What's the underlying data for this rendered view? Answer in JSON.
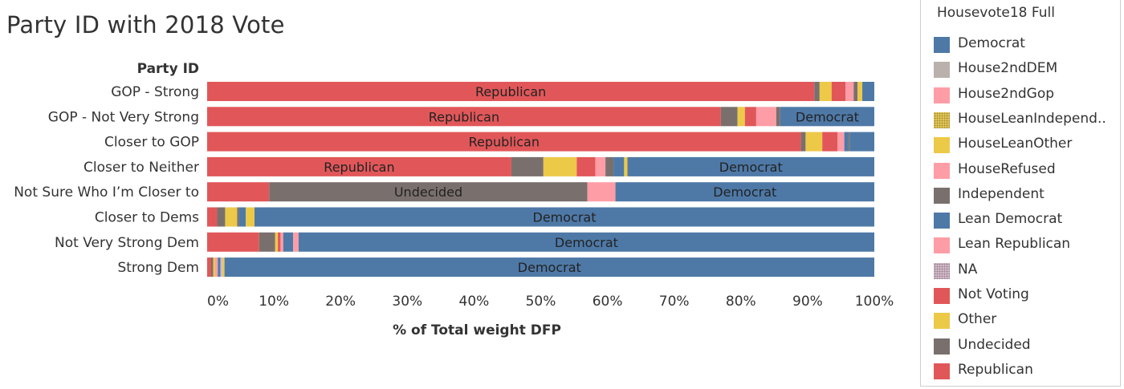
{
  "title": "Party ID with 2018 Vote",
  "chart_data": {
    "type": "bar",
    "orientation": "horizontal",
    "stacked": "percent",
    "row_header": "Party ID",
    "xlabel": "% of Total weight DFP",
    "xlim": [
      0,
      100
    ],
    "x_ticks": [
      "0%",
      "10%",
      "20%",
      "30%",
      "40%",
      "50%",
      "60%",
      "70%",
      "80%",
      "90%",
      "100%"
    ],
    "categories": [
      "GOP - Strong",
      "GOP - Not Very Strong",
      "Closer to GOP",
      "Closer to Neither",
      "Not Sure Who I’m Closer to",
      "Closer to Dems",
      "Not Very Strong Dem",
      "Strong Dem"
    ],
    "bars": [
      [
        {
          "series": "Republican",
          "value": 91,
          "label": "Republican"
        },
        {
          "series": "Undecided",
          "value": 0.8
        },
        {
          "series": "Other",
          "value": 1.8
        },
        {
          "series": "Not Voting",
          "value": 2.1
        },
        {
          "series": "HouseRefused",
          "value": 1.2
        },
        {
          "series": "Undecided",
          "value": 0.6
        },
        {
          "series": "Other",
          "value": 0.7
        },
        {
          "series": "Democrat",
          "value": 1.8
        }
      ],
      [
        {
          "series": "Republican",
          "value": 77,
          "label": "Republican"
        },
        {
          "series": "Undecided",
          "value": 2.5
        },
        {
          "series": "Other",
          "value": 1.1
        },
        {
          "series": "Not Voting",
          "value": 1.7
        },
        {
          "series": "HouseRefused",
          "value": 3.0
        },
        {
          "series": "Undecided",
          "value": 0.6
        },
        {
          "series": "Democrat",
          "value": 14.1,
          "label": "Democrat"
        }
      ],
      [
        {
          "series": "Republican",
          "value": 89,
          "label": "Republican"
        },
        {
          "series": "Undecided",
          "value": 0.7
        },
        {
          "series": "Other",
          "value": 2.5
        },
        {
          "series": "Not Voting",
          "value": 2.3
        },
        {
          "series": "HouseRefused",
          "value": 1.0
        },
        {
          "series": "Lean Democrat",
          "value": 0.6
        },
        {
          "series": "Undecided",
          "value": 0.2
        },
        {
          "series": "Democrat",
          "value": 3.7
        }
      ],
      [
        {
          "series": "Republican",
          "value": 45.6,
          "label": "Republican"
        },
        {
          "series": "Undecided",
          "value": 4.8
        },
        {
          "series": "Other",
          "value": 5.0
        },
        {
          "series": "Not Voting",
          "value": 2.8
        },
        {
          "series": "HouseRefused",
          "value": 1.5
        },
        {
          "series": "Undecided",
          "value": 1.2
        },
        {
          "series": "Lean Democrat",
          "value": 1.6
        },
        {
          "series": "Other",
          "value": 0.5
        },
        {
          "series": "Democrat",
          "value": 37.0,
          "label": "Democrat"
        }
      ],
      [
        {
          "series": "Not Voting",
          "value": 9.3
        },
        {
          "series": "Undecided",
          "value": 47.7,
          "label": "Undecided"
        },
        {
          "series": "HouseRefused",
          "value": 4.2
        },
        {
          "series": "Democrat",
          "value": 38.8,
          "label": "Democrat"
        }
      ],
      [
        {
          "series": "Not Voting",
          "value": 1.5
        },
        {
          "series": "Undecided",
          "value": 1.2
        },
        {
          "series": "Other",
          "value": 1.8
        },
        {
          "series": "Undecided",
          "value": 0.3
        },
        {
          "series": "Lean Democrat",
          "value": 1.0
        },
        {
          "series": "Other",
          "value": 1.3
        },
        {
          "series": "Democrat",
          "value": 92.9,
          "label": "Democrat"
        }
      ],
      [
        {
          "series": "Not Voting",
          "value": 7.8
        },
        {
          "series": "Undecided",
          "value": 2.4
        },
        {
          "series": "Other",
          "value": 0.4
        },
        {
          "series": "Not Voting",
          "value": 0.4
        },
        {
          "series": "HouseRefused",
          "value": 0.4
        },
        {
          "series": "Lean Democrat",
          "value": 1.5
        },
        {
          "series": "HouseRefused",
          "value": 0.8
        },
        {
          "series": "Democrat",
          "value": 86.3,
          "label": "Democrat"
        }
      ],
      [
        {
          "series": "Republican",
          "value": 0.6
        },
        {
          "series": "Undecided",
          "value": 0.3
        },
        {
          "series": "Other",
          "value": 0.3
        },
        {
          "series": "HouseRefused",
          "value": 0.4
        },
        {
          "series": "Lean Democrat",
          "value": 0.4
        },
        {
          "series": "NA",
          "value": 0.3
        },
        {
          "series": "Other",
          "value": 0.3
        },
        {
          "series": "Democrat",
          "value": 97.4,
          "label": "Democrat"
        }
      ]
    ]
  },
  "legend": {
    "title": "Housevote18 Full",
    "items": [
      {
        "label": "Democrat",
        "color": "#4e79a7"
      },
      {
        "label": "House2ndDEM",
        "color": "#bab0ac"
      },
      {
        "label": "House2ndGop",
        "color": "#ff9da7"
      },
      {
        "label": "HouseLeanIndepend..",
        "color": "#e3c653",
        "pattern": "dotted"
      },
      {
        "label": "HouseLeanOther",
        "color": "#edc948"
      },
      {
        "label": "HouseRefused",
        "color": "#ff9da7"
      },
      {
        "label": "Independent",
        "color": "#79706e"
      },
      {
        "label": "Lean Democrat",
        "color": "#4e79a7"
      },
      {
        "label": "Lean Republican",
        "color": "#ff9da7"
      },
      {
        "label": "NA",
        "color": "#d4b9c9",
        "pattern": "dotted"
      },
      {
        "label": "Not Voting",
        "color": "#e15759"
      },
      {
        "label": "Other",
        "color": "#edc948"
      },
      {
        "label": "Undecided",
        "color": "#79706e"
      },
      {
        "label": "Republican",
        "color": "#e15759"
      }
    ]
  }
}
